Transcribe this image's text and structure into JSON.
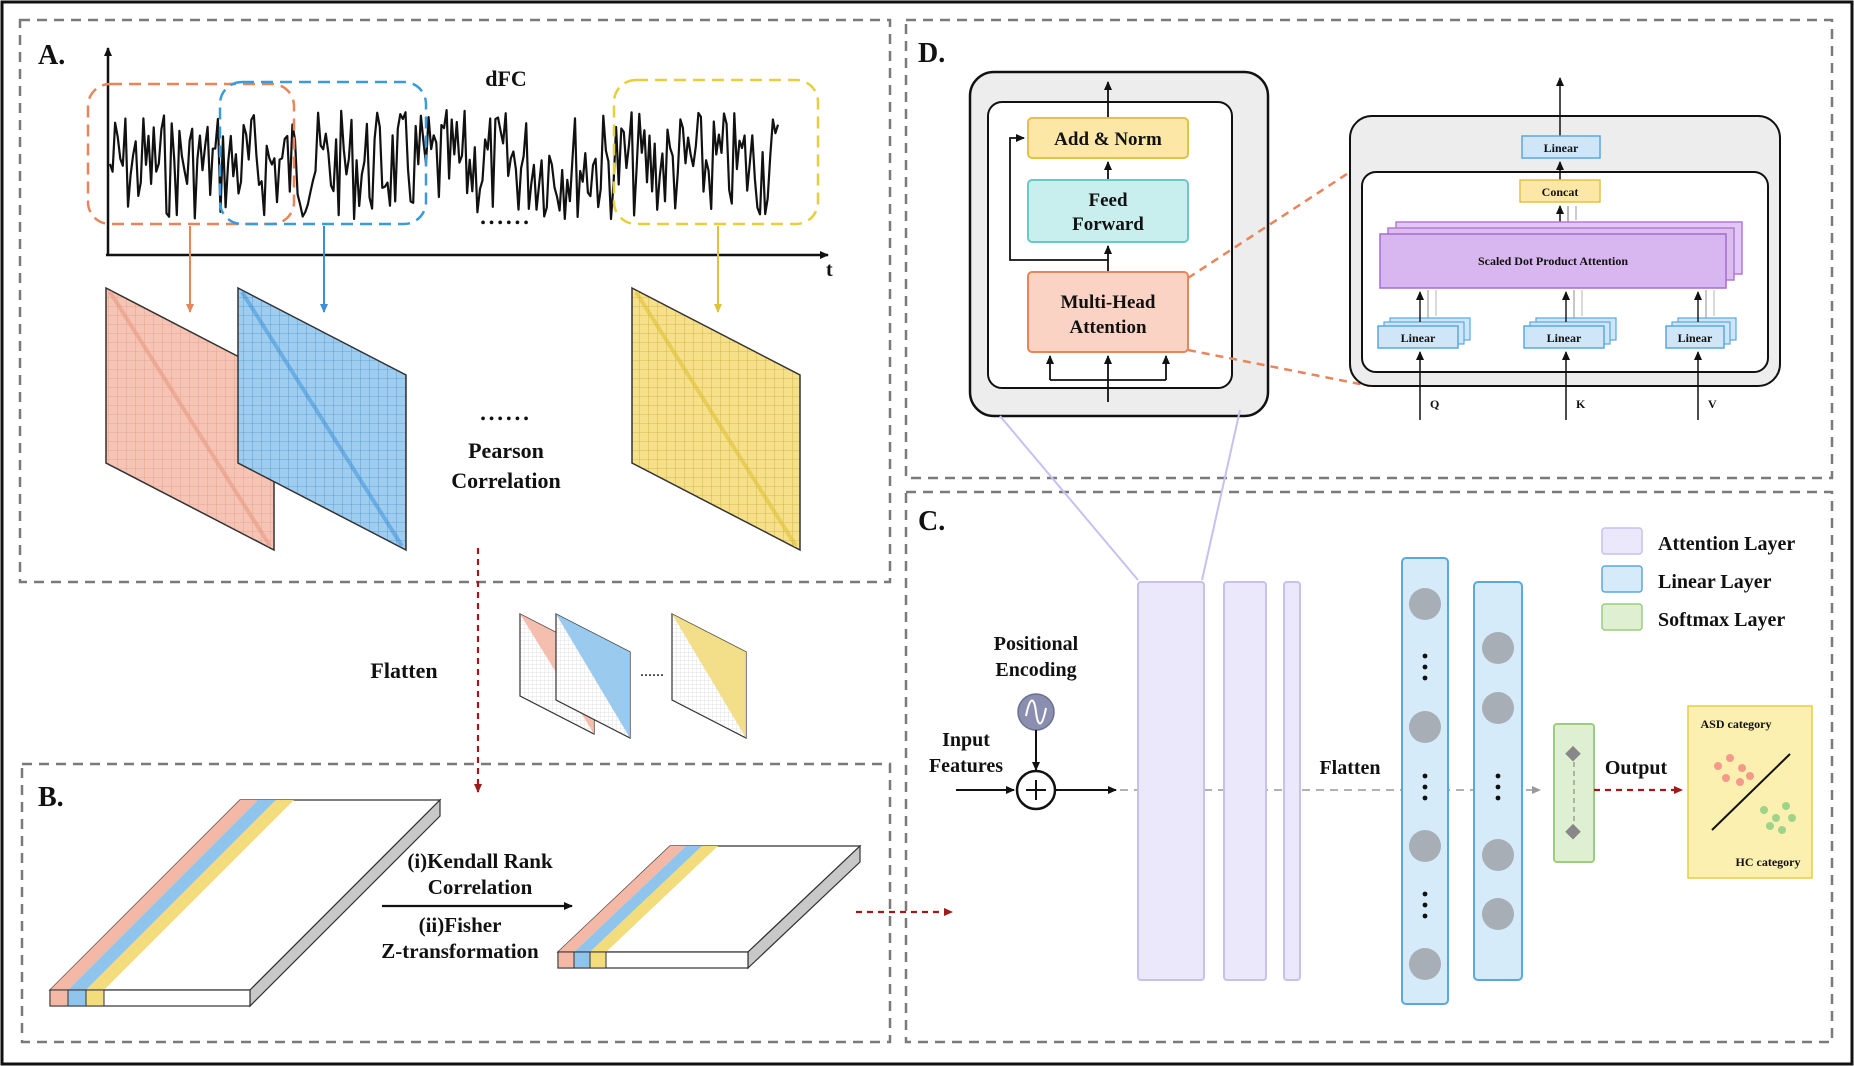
{
  "panels": {
    "a": {
      "label": "A.",
      "series_label": "dFC",
      "time_axis_label": "t",
      "ellipsis_top": "••••••",
      "ellipsis_mid": "••••••",
      "method_line1": "Pearson",
      "method_line2": "Correlation"
    },
    "flatten": {
      "label": "Flatten",
      "ellipsis": "......"
    },
    "b": {
      "label": "B.",
      "step1_line1": "(i)Kendall Rank",
      "step1_line2": "Correlation",
      "step2_line1": "(ii)Fisher",
      "step2_line2": "Z-transformation"
    },
    "c": {
      "label": "C.",
      "positional_line1": "Positional",
      "positional_line2": "Encoding",
      "input_line1": "Input",
      "input_line2": "Features",
      "flatten_label": "Flatten",
      "output_label": "Output",
      "asd_label": "ASD category",
      "hc_label": "HC category",
      "legend": [
        {
          "label": "Attention Layer",
          "fill": "#ece8fb",
          "stroke": "#c9bff0"
        },
        {
          "label": "Linear Layer",
          "fill": "#d6ebfa",
          "stroke": "#5aa8e0"
        },
        {
          "label": "Softmax Layer",
          "fill": "#dff0d2",
          "stroke": "#9ccc7e"
        }
      ]
    },
    "d": {
      "label": "D.",
      "add_norm": "Add & Norm",
      "feed_line1": "Feed",
      "feed_line2": "Forward",
      "mha_line1": "Multi-Head",
      "mha_line2": "Attention",
      "linear_top": "Linear",
      "concat": "Concat",
      "sdpa": "Scaled Dot Product Attention",
      "linear_q": "Linear",
      "linear_k": "Linear",
      "linear_v": "Linear",
      "q": "Q",
      "k": "K",
      "v": "V"
    }
  },
  "colors": {
    "salmon": "#f4b8a6",
    "blue": "#8fc5ec",
    "yellow": "#f2dc7c",
    "red_arrow": "#a01818",
    "dash": "#7a7a7a",
    "orange_dash": "#e8855a",
    "purple_dash": "#c9bff0"
  }
}
